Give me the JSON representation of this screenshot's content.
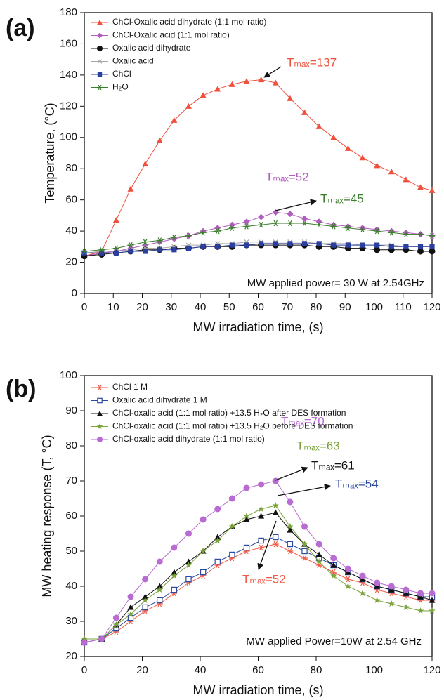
{
  "chart_data": [
    {
      "type": "line",
      "panel_label": "(a)",
      "x_label": "MW irradiation time, (s)",
      "y_label": "Temperature, (°C)",
      "xlim": [
        0,
        120
      ],
      "ylim": [
        0,
        180
      ],
      "xticks": [
        0,
        10,
        20,
        30,
        40,
        50,
        60,
        70,
        80,
        90,
        100,
        110,
        120
      ],
      "yticks": [
        0,
        20,
        40,
        60,
        80,
        100,
        120,
        140,
        160,
        180
      ],
      "x": [
        0,
        6,
        11,
        16,
        21,
        26,
        31,
        36,
        41,
        46,
        51,
        56,
        61,
        66,
        71,
        76,
        81,
        86,
        91,
        96,
        101,
        106,
        111,
        116,
        120
      ],
      "series": [
        {
          "name": "ChCl-Oxalic acid dihydrate (1:1 mol ratio)",
          "color": "#f0503c",
          "marker": "triangle",
          "values": [
            24,
            27,
            47,
            67,
            83,
            98,
            111,
            120,
            127,
            131,
            134,
            136,
            137,
            135,
            125,
            116,
            107,
            100,
            93,
            87,
            82,
            78,
            73,
            68,
            66
          ]
        },
        {
          "name": "ChCl-Oxalic acid (1:1 mol ratio)",
          "color": "#b25bc0",
          "marker": "diamond",
          "values": [
            24,
            26,
            27,
            29,
            31,
            33,
            35,
            37,
            40,
            42,
            44,
            46,
            49,
            52,
            51,
            48,
            46,
            44,
            43,
            42,
            41,
            40,
            39,
            38,
            37
          ]
        },
        {
          "name": "Oxalic acid dihydrate",
          "color": "#111111",
          "marker": "circle",
          "values": [
            24,
            25,
            26,
            27,
            28,
            28,
            29,
            29,
            30,
            30,
            30,
            31,
            31,
            31,
            31,
            31,
            30,
            30,
            29,
            29,
            28,
            28,
            28,
            27,
            27
          ]
        },
        {
          "name": "Oxalic acid",
          "color": "#a8a8a8",
          "marker": "x",
          "values": [
            26,
            27,
            27,
            28,
            29,
            29,
            30,
            31,
            31,
            32,
            32,
            33,
            33,
            33,
            33,
            33,
            32,
            32,
            32,
            31,
            31,
            31,
            30,
            30,
            30
          ]
        },
        {
          "name": "ChCl",
          "color": "#2b3f9e",
          "marker": "square",
          "values": [
            26,
            26,
            26,
            27,
            27,
            28,
            28,
            29,
            30,
            30,
            31,
            31,
            32,
            32,
            32,
            32,
            32,
            31,
            31,
            31,
            31,
            30,
            30,
            30,
            30
          ]
        },
        {
          "name": "H₂O",
          "color": "#3a7d2c",
          "marker": "asterisk",
          "values": [
            27,
            28,
            29,
            31,
            33,
            34,
            36,
            37,
            39,
            40,
            42,
            43,
            44,
            45,
            45,
            45,
            44,
            43,
            42,
            41,
            40,
            39,
            38,
            38,
            37
          ]
        }
      ],
      "annotations": [
        {
          "text": "Tₘₐₓ=137",
          "color": "#f0503c"
        },
        {
          "text": "Tₘₐₓ=52",
          "color": "#b25bc0"
        },
        {
          "text": "Tₘₐₓ=45",
          "color": "#3a7d2c"
        }
      ],
      "note": "MW applied power= 30 W at 2.54GHz"
    },
    {
      "type": "line",
      "panel_label": "(b)",
      "x_label": "MW irradiation time, (s)",
      "y_label": "MW heating response (T, °C)",
      "xlim": [
        0,
        120
      ],
      "ylim": [
        20,
        100
      ],
      "xticks": [
        0,
        20,
        40,
        60,
        80,
        100,
        120
      ],
      "yticks": [
        20,
        30,
        40,
        50,
        60,
        70,
        80,
        90,
        100
      ],
      "x": [
        0,
        6,
        11,
        16,
        21,
        26,
        31,
        36,
        41,
        46,
        51,
        56,
        61,
        66,
        71,
        76,
        81,
        86,
        91,
        96,
        101,
        106,
        111,
        116,
        120
      ],
      "series": [
        {
          "name": "ChCl 1 M",
          "color": "#f05a46",
          "marker": "asterisk",
          "values": [
            24,
            25,
            27,
            30,
            33,
            35,
            38,
            41,
            43,
            46,
            48,
            50,
            51,
            52,
            50,
            48,
            46,
            44,
            42,
            41,
            39,
            38,
            37,
            36,
            36
          ]
        },
        {
          "name": "Oxalic acid dihydrate 1 M",
          "color": "#2d4aa0",
          "marker": "open-square",
          "values": [
            24,
            25,
            28,
            31,
            34,
            36,
            39,
            42,
            44,
            47,
            49,
            51,
            53,
            54,
            52,
            50,
            48,
            46,
            44,
            42,
            40,
            39,
            38,
            37,
            37
          ]
        },
        {
          "name": "ChCl-oxalic acid (1:1 mol ratio) +13.5 H₂O after DES formation",
          "color": "#111111",
          "marker": "triangle",
          "values": [
            25,
            25,
            29,
            34,
            37,
            40,
            44,
            47,
            50,
            54,
            57,
            59,
            60,
            61,
            56,
            52,
            49,
            46,
            44,
            42,
            40,
            39,
            38,
            37,
            36
          ]
        },
        {
          "name": "ChCl-oxalic acid (1:1 mol ratio) +13.5 H₂O before DES formation",
          "color": "#7aa33a",
          "marker": "star",
          "values": [
            25,
            25,
            29,
            32,
            36,
            39,
            43,
            46,
            50,
            53,
            57,
            60,
            62,
            63,
            57,
            52,
            47,
            43,
            40,
            38,
            36,
            35,
            34,
            33,
            33
          ]
        },
        {
          "name": "ChCl-oxalic acid dihydrate (1:1 mol ratio)",
          "color": "#b86bd0",
          "marker": "circle",
          "values": [
            24,
            25,
            31,
            37,
            42,
            47,
            51,
            55,
            59,
            62,
            65,
            68,
            69,
            70,
            64,
            57,
            52,
            48,
            45,
            43,
            41,
            40,
            39,
            38,
            38
          ]
        }
      ],
      "annotations": [
        {
          "text": "Tₘₐₓ=70",
          "color": "#b86bd0"
        },
        {
          "text": "Tₘₐₓ=63",
          "color": "#7aa33a"
        },
        {
          "text": "Tₘₐₓ=61",
          "color": "#111111"
        },
        {
          "text": "Tₘₐₓ=54",
          "color": "#2d4aa0"
        },
        {
          "text": "Tₘₐₓ=52",
          "color": "#f05a46"
        }
      ],
      "note": "MW applied Power=10W at 2.54 GHz"
    }
  ]
}
